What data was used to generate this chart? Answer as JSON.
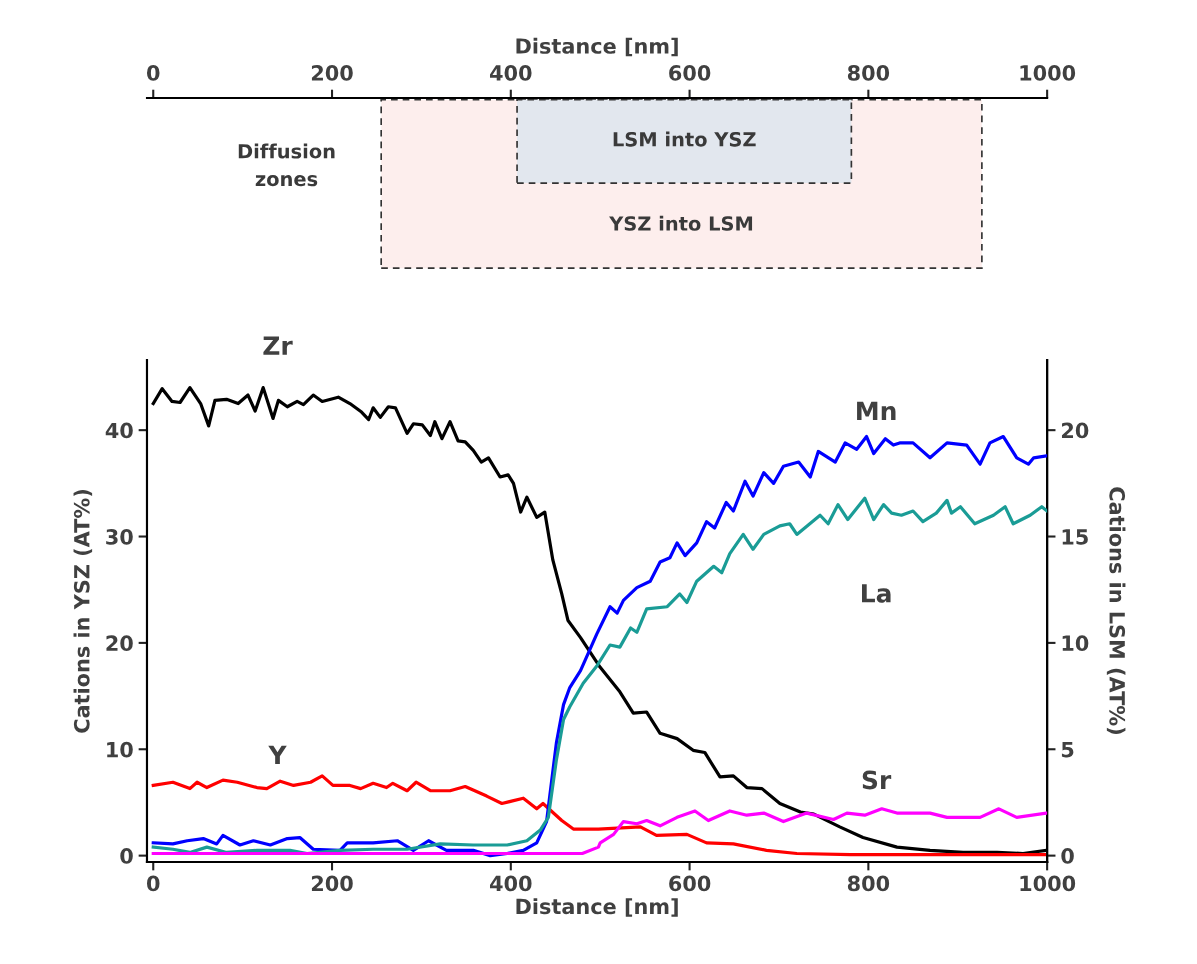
{
  "chart_data": [
    {
      "type": "bar",
      "orientation": "horizontal",
      "xlabel": "Distance [nm]",
      "xlim": [
        -7,
        1000
      ],
      "xticks": [
        0,
        200,
        400,
        600,
        800,
        1000
      ],
      "categories": [
        "LSM into YSZ",
        "YSZ into LSM"
      ],
      "base": [
        407,
        255
      ],
      "values": [
        374,
        672
      ],
      "colors": [
        "#e2e7ee",
        "#fdeeed"
      ],
      "line_style": "dashed",
      "annotations": [
        "Diffusion\nzones"
      ]
    },
    {
      "type": "line",
      "xlabel": "Distance [nm]",
      "ylabel": "Cations in YSZ (AT%)",
      "y2label": "Cations in LSM (AT%)",
      "xlim": [
        -7,
        1000
      ],
      "xticks": [
        0,
        200,
        400,
        600,
        800,
        1000
      ],
      "ylim": [
        -0.6,
        46.6
      ],
      "yticks": [
        0,
        10,
        20,
        30,
        40
      ],
      "y2lim": [
        -0.3,
        23.3
      ],
      "y2ticks": [
        0,
        5,
        10,
        15,
        20
      ],
      "grid": false,
      "legend": false,
      "marker": "none",
      "line_style": "solid",
      "series": [
        {
          "name": "Zr",
          "color": "#000000",
          "x": [
            0,
            10,
            21,
            30,
            41,
            53,
            62,
            69,
            82,
            95,
            106,
            114,
            123,
            134,
            140,
            150,
            161,
            168,
            179,
            189,
            207,
            220,
            233,
            241,
            246,
            254,
            263,
            271,
            284,
            291,
            301,
            310,
            315,
            323,
            332,
            341,
            349,
            358,
            367,
            375,
            388,
            397,
            403,
            411,
            418,
            429,
            438,
            447,
            457,
            464,
            478,
            500,
            522,
            537,
            552,
            567,
            586,
            604,
            617,
            634,
            649,
            664,
            681,
            701,
            724,
            739,
            768,
            794,
            832,
            869,
            906,
            944,
            973,
            1000
          ],
          "values": [
            42.5,
            43.9,
            42.7,
            42.6,
            44.0,
            42.5,
            40.4,
            42.8,
            42.9,
            42.5,
            43.3,
            41.8,
            44.0,
            41.1,
            42.8,
            42.2,
            42.7,
            42.4,
            43.3,
            42.7,
            43.1,
            42.5,
            41.7,
            41.0,
            42.1,
            41.2,
            42.2,
            42.1,
            39.7,
            40.6,
            40.5,
            39.5,
            40.8,
            39.2,
            40.8,
            39.0,
            38.9,
            38.1,
            37.0,
            37.4,
            35.6,
            35.8,
            35.0,
            32.3,
            33.7,
            31.8,
            32.3,
            27.8,
            24.6,
            22.1,
            20.5,
            17.7,
            15.4,
            13.4,
            13.5,
            11.5,
            11.0,
            9.9,
            9.7,
            7.4,
            7.5,
            6.4,
            6.3,
            4.9,
            4.1,
            3.9,
            2.7,
            1.7,
            0.8,
            0.5,
            0.3,
            0.3,
            0.2,
            0.5
          ]
        },
        {
          "name": "Y",
          "color": "#ff0000",
          "x": [
            0,
            22,
            41,
            49,
            60,
            78,
            94,
            116,
            127,
            142,
            157,
            176,
            189,
            201,
            220,
            232,
            246,
            261,
            268,
            284,
            294,
            310,
            332,
            349,
            373,
            390,
            414,
            429,
            436,
            457,
            470,
            498,
            545,
            563,
            597,
            619,
            649,
            686,
            720,
            780,
            1000
          ],
          "values": [
            6.6,
            6.9,
            6.3,
            6.9,
            6.4,
            7.1,
            6.9,
            6.4,
            6.3,
            7.0,
            6.6,
            6.9,
            7.5,
            6.6,
            6.6,
            6.3,
            6.8,
            6.4,
            6.8,
            6.1,
            6.9,
            6.1,
            6.1,
            6.5,
            5.6,
            4.9,
            5.4,
            4.4,
            4.9,
            3.3,
            2.5,
            2.5,
            2.7,
            1.9,
            2.0,
            1.2,
            1.1,
            0.5,
            0.2,
            0.1,
            0.1
          ]
        },
        {
          "name": "Mn",
          "color": "#0000ff",
          "axis": "y2",
          "x": [
            0,
            22,
            38,
            56,
            71,
            78,
            97,
            112,
            131,
            150,
            164,
            179,
            209,
            217,
            246,
            273,
            291,
            308,
            328,
            358,
            377,
            396,
            414,
            429,
            440,
            451,
            459,
            466,
            478,
            496,
            511,
            519,
            526,
            541,
            556,
            567,
            578,
            586,
            595,
            608,
            619,
            628,
            641,
            649,
            662,
            671,
            683,
            694,
            705,
            722,
            735,
            744,
            763,
            774,
            787,
            798,
            806,
            819,
            828,
            835,
            850,
            869,
            888,
            910,
            925,
            936,
            951,
            966,
            979,
            985,
            1000
          ],
          "values": [
            0.6,
            0.55,
            0.7,
            0.8,
            0.55,
            0.95,
            0.5,
            0.7,
            0.5,
            0.8,
            0.85,
            0.3,
            0.25,
            0.6,
            0.6,
            0.7,
            0.25,
            0.7,
            0.25,
            0.25,
            0.0,
            0.1,
            0.25,
            0.6,
            1.6,
            5.3,
            7.1,
            7.9,
            8.7,
            10.4,
            11.7,
            11.4,
            12.0,
            12.6,
            12.9,
            13.8,
            14.0,
            14.7,
            14.1,
            14.7,
            15.7,
            15.4,
            16.6,
            16.2,
            17.6,
            16.9,
            18.0,
            17.5,
            18.3,
            18.5,
            17.8,
            19.0,
            18.5,
            19.4,
            19.1,
            19.7,
            18.9,
            19.6,
            19.3,
            19.4,
            19.4,
            18.7,
            19.4,
            19.3,
            18.4,
            19.4,
            19.7,
            18.7,
            18.4,
            18.7,
            18.8
          ]
        },
        {
          "name": "La",
          "color": "#1a9c96",
          "axis": "y2",
          "x": [
            0,
            22,
            41,
            60,
            82,
            116,
            153,
            172,
            209,
            246,
            284,
            321,
            358,
            396,
            418,
            433,
            442,
            451,
            459,
            466,
            481,
            496,
            511,
            522,
            534,
            541,
            552,
            575,
            589,
            597,
            608,
            627,
            636,
            645,
            660,
            671,
            683,
            701,
            712,
            720,
            746,
            755,
            766,
            777,
            796,
            806,
            817,
            826,
            837,
            850,
            861,
            876,
            888,
            893,
            903,
            919,
            940,
            953,
            962,
            981,
            994,
            1000
          ],
          "values": [
            0.4,
            0.3,
            0.15,
            0.4,
            0.15,
            0.25,
            0.25,
            0.1,
            0.25,
            0.3,
            0.3,
            0.55,
            0.5,
            0.5,
            0.7,
            1.2,
            1.8,
            4.5,
            6.4,
            7.0,
            8.1,
            8.9,
            9.9,
            9.8,
            10.7,
            10.5,
            11.6,
            11.7,
            12.3,
            11.9,
            12.9,
            13.6,
            13.3,
            14.2,
            15.1,
            14.4,
            15.1,
            15.5,
            15.6,
            15.1,
            16.0,
            15.6,
            16.5,
            15.8,
            16.8,
            15.8,
            16.5,
            16.1,
            16.0,
            16.2,
            15.7,
            16.1,
            16.7,
            16.1,
            16.4,
            15.6,
            16.0,
            16.4,
            15.6,
            16.0,
            16.4,
            16.2
          ]
        },
        {
          "name": "Sr",
          "color": "#ff00ff",
          "axis": "y2",
          "x": [
            0,
            100,
            200,
            300,
            400,
            480,
            498,
            500,
            515,
            526,
            541,
            552,
            567,
            586,
            606,
            621,
            645,
            664,
            683,
            705,
            731,
            761,
            776,
            796,
            815,
            832,
            869,
            888,
            925,
            946,
            966,
            1000
          ],
          "values": [
            0.1,
            0.1,
            0.1,
            0.1,
            0.1,
            0.1,
            0.4,
            0.6,
            1.0,
            1.6,
            1.5,
            1.65,
            1.4,
            1.8,
            2.1,
            1.65,
            2.1,
            1.9,
            2.0,
            1.6,
            2.0,
            1.7,
            2.0,
            1.9,
            2.2,
            2.0,
            2.0,
            1.8,
            1.8,
            2.2,
            1.8,
            2.0
          ]
        }
      ]
    }
  ]
}
